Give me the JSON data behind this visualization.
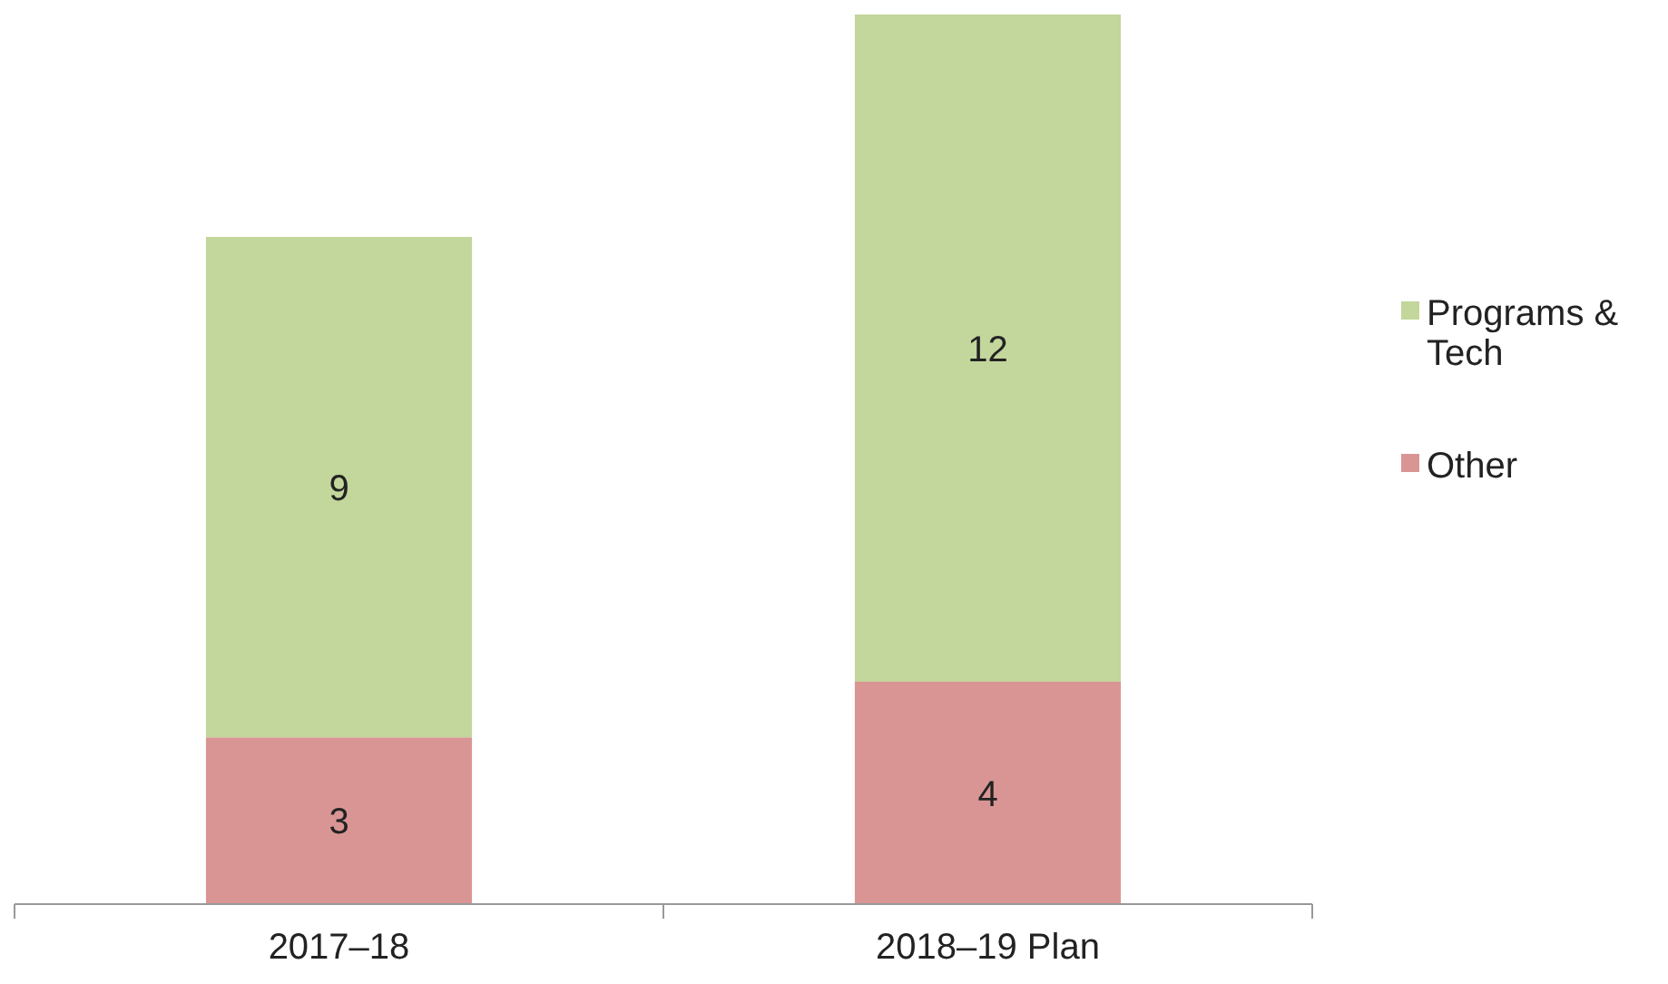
{
  "chart_data": {
    "type": "bar",
    "stacked": true,
    "categories": [
      "2017–18",
      "2018–19 Plan"
    ],
    "series": [
      {
        "name": "Other",
        "color": "#d99594",
        "values": [
          3,
          4
        ]
      },
      {
        "name": "Programs & Tech",
        "color": "#c3d69b",
        "values": [
          9,
          12
        ]
      }
    ],
    "data_labels": true,
    "legend": "right"
  }
}
